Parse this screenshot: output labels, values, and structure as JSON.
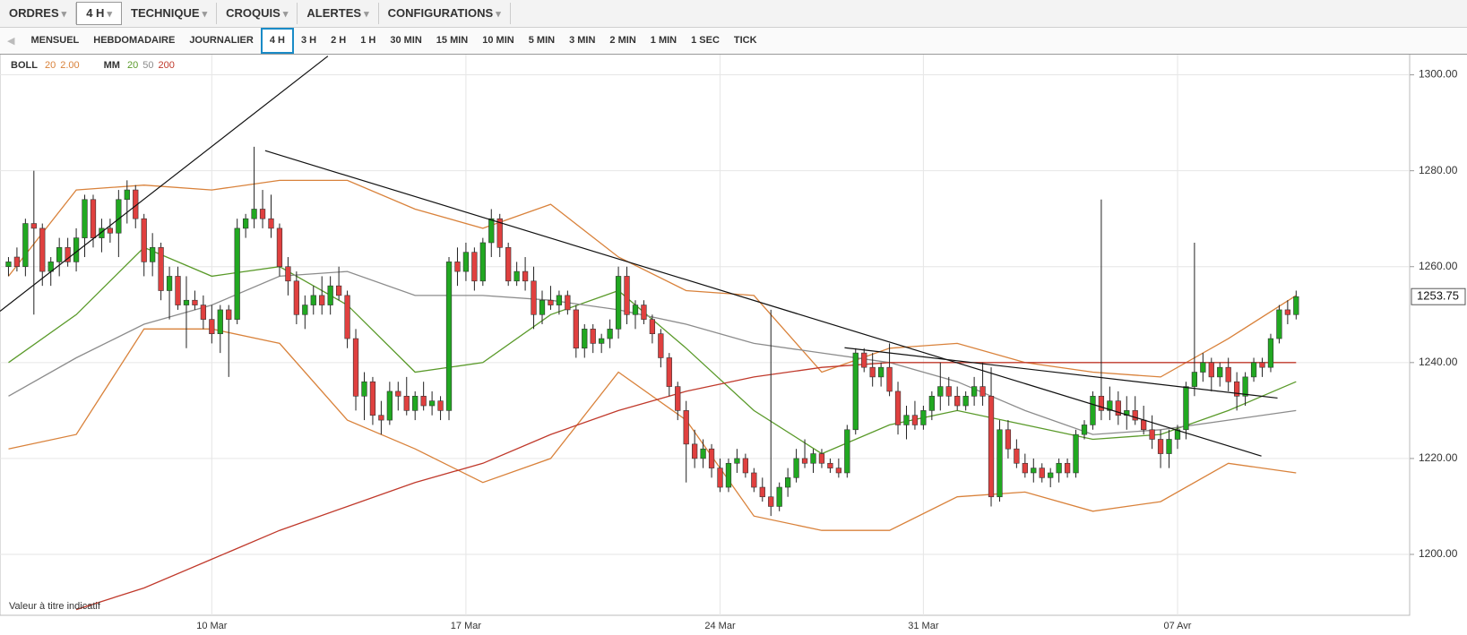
{
  "toolbar": {
    "menus": [
      "ORDRES",
      "4 H",
      "TECHNIQUE",
      "CROQUIS",
      "ALERTES",
      "CONFIGURATIONS"
    ],
    "selected": 1
  },
  "timeframes": {
    "items": [
      "MENSUEL",
      "HEBDOMADAIRE",
      "JOURNALIER",
      "4 H",
      "3 H",
      "2 H",
      "1 H",
      "30 MIN",
      "15 MIN",
      "10 MIN",
      "5 MIN",
      "3 MIN",
      "2 MIN",
      "1 MIN",
      "1 SEC",
      "TICK"
    ],
    "selected": 3
  },
  "chart_data": {
    "type": "candlestick",
    "indicators": [
      {
        "label": "BOLL",
        "params": [
          {
            "text": "20",
            "color": "#d9823b"
          },
          {
            "text": "2.00",
            "color": "#d9823b"
          }
        ]
      },
      {
        "label": "MM",
        "params": [
          {
            "text": "20",
            "color": "#5a9a2a"
          },
          {
            "text": "50",
            "color": "#8c8c8c"
          },
          {
            "text": "200",
            "color": "#c0392b"
          }
        ]
      }
    ],
    "up_color": "#21a821",
    "down_color": "#e0403f",
    "xlim": [
      -1,
      165.4
    ],
    "xticks": [
      {
        "value": 24,
        "label": "10 Mar"
      },
      {
        "value": 54,
        "label": "17 Mar"
      },
      {
        "value": 84,
        "label": "24 Mar"
      },
      {
        "value": 108,
        "label": "31 Mar"
      },
      {
        "value": 138,
        "label": "07 Avr"
      }
    ],
    "ylim": [
      1187.3,
      1304.4
    ],
    "yticks": [
      {
        "value": 1200,
        "label": "1200.00"
      },
      {
        "value": 1220,
        "label": "1220.00"
      },
      {
        "value": 1240,
        "label": "1240.00"
      },
      {
        "value": 1260,
        "label": "1260.00"
      },
      {
        "value": 1280,
        "label": "1280.00"
      },
      {
        "value": 1300,
        "label": "1300.00"
      }
    ],
    "grid": true,
    "last_price": 1253.75,
    "candles": [
      [
        1260,
        1262,
        1258,
        1261
      ],
      [
        1262,
        1264,
        1259,
        1260
      ],
      [
        1260,
        1270,
        1258,
        1269
      ],
      [
        1269,
        1280,
        1250,
        1268
      ],
      [
        1268,
        1269,
        1256,
        1259
      ],
      [
        1259,
        1262,
        1256,
        1261
      ],
      [
        1261,
        1266,
        1258,
        1264
      ],
      [
        1264,
        1266,
        1260,
        1261
      ],
      [
        1261,
        1268,
        1259,
        1266
      ],
      [
        1266,
        1275,
        1262,
        1274
      ],
      [
        1274,
        1275,
        1264,
        1266
      ],
      [
        1266,
        1270,
        1263,
        1268
      ],
      [
        1268,
        1270,
        1265,
        1267
      ],
      [
        1267,
        1276,
        1262,
        1274
      ],
      [
        1274,
        1278,
        1269,
        1276
      ],
      [
        1276,
        1277,
        1268,
        1270
      ],
      [
        1270,
        1271,
        1258,
        1261
      ],
      [
        1261,
        1267,
        1258,
        1264
      ],
      [
        1264,
        1265,
        1253,
        1255
      ],
      [
        1255,
        1260,
        1249,
        1258
      ],
      [
        1258,
        1260,
        1251,
        1252
      ],
      [
        1252,
        1258,
        1243,
        1253
      ],
      [
        1253,
        1255,
        1251,
        1252
      ],
      [
        1252,
        1254,
        1247,
        1249
      ],
      [
        1249,
        1252,
        1244,
        1246
      ],
      [
        1246,
        1252,
        1242,
        1251
      ],
      [
        1251,
        1252,
        1237,
        1249
      ],
      [
        1249,
        1270,
        1248,
        1268
      ],
      [
        1268,
        1271,
        1266,
        1270
      ],
      [
        1270,
        1285,
        1268,
        1272
      ],
      [
        1272,
        1276,
        1268,
        1270
      ],
      [
        1270,
        1275,
        1266,
        1268
      ],
      [
        1268,
        1269,
        1258,
        1260
      ],
      [
        1260,
        1262,
        1254,
        1257
      ],
      [
        1257,
        1259,
        1248,
        1250
      ],
      [
        1250,
        1254,
        1247,
        1252
      ],
      [
        1252,
        1256,
        1250,
        1254
      ],
      [
        1254,
        1258,
        1250,
        1252
      ],
      [
        1252,
        1258,
        1250,
        1256
      ],
      [
        1256,
        1260,
        1253,
        1254
      ],
      [
        1254,
        1255,
        1243,
        1245
      ],
      [
        1245,
        1247,
        1230,
        1233
      ],
      [
        1233,
        1238,
        1228,
        1236
      ],
      [
        1236,
        1237,
        1227,
        1229
      ],
      [
        1229,
        1232,
        1225,
        1228
      ],
      [
        1228,
        1236,
        1227,
        1234
      ],
      [
        1234,
        1236,
        1230,
        1233
      ],
      [
        1233,
        1237,
        1229,
        1230
      ],
      [
        1230,
        1234,
        1228,
        1233
      ],
      [
        1233,
        1236,
        1230,
        1231
      ],
      [
        1231,
        1234,
        1229,
        1232
      ],
      [
        1232,
        1233,
        1228,
        1230
      ],
      [
        1230,
        1262,
        1228,
        1261
      ],
      [
        1261,
        1264,
        1256,
        1259
      ],
      [
        1259,
        1265,
        1257,
        1263
      ],
      [
        1263,
        1264,
        1255,
        1257
      ],
      [
        1257,
        1266,
        1256,
        1265
      ],
      [
        1265,
        1272,
        1262,
        1270
      ],
      [
        1270,
        1271,
        1262,
        1264
      ],
      [
        1264,
        1265,
        1256,
        1257
      ],
      [
        1257,
        1261,
        1256,
        1259
      ],
      [
        1259,
        1262,
        1255,
        1257
      ],
      [
        1257,
        1260,
        1247,
        1250
      ],
      [
        1250,
        1255,
        1248,
        1253
      ],
      [
        1253,
        1256,
        1251,
        1252
      ],
      [
        1252,
        1255,
        1250,
        1254
      ],
      [
        1254,
        1255,
        1250,
        1251
      ],
      [
        1251,
        1252,
        1241,
        1243
      ],
      [
        1243,
        1248,
        1241,
        1247
      ],
      [
        1247,
        1248,
        1242,
        1244
      ],
      [
        1244,
        1246,
        1242,
        1245
      ],
      [
        1245,
        1249,
        1243,
        1247
      ],
      [
        1247,
        1260,
        1245,
        1258
      ],
      [
        1258,
        1260,
        1248,
        1250
      ],
      [
        1250,
        1253,
        1247,
        1252
      ],
      [
        1252,
        1253,
        1248,
        1249
      ],
      [
        1249,
        1250,
        1244,
        1246
      ],
      [
        1246,
        1247,
        1239,
        1241
      ],
      [
        1241,
        1242,
        1233,
        1235
      ],
      [
        1235,
        1236,
        1228,
        1230
      ],
      [
        1230,
        1232,
        1215,
        1223
      ],
      [
        1223,
        1226,
        1218,
        1220
      ],
      [
        1220,
        1224,
        1218,
        1222
      ],
      [
        1222,
        1223,
        1216,
        1218
      ],
      [
        1218,
        1220,
        1213,
        1214
      ],
      [
        1214,
        1220,
        1213,
        1219
      ],
      [
        1219,
        1222,
        1217,
        1220
      ],
      [
        1220,
        1221,
        1216,
        1217
      ],
      [
        1217,
        1218,
        1213,
        1214
      ],
      [
        1214,
        1216,
        1211,
        1212
      ],
      [
        1212,
        1251,
        1208,
        1210
      ],
      [
        1210,
        1215,
        1209,
        1214
      ],
      [
        1214,
        1218,
        1212,
        1216
      ],
      [
        1216,
        1222,
        1215,
        1220
      ],
      [
        1220,
        1224,
        1218,
        1219
      ],
      [
        1219,
        1222,
        1217,
        1221
      ],
      [
        1221,
        1222,
        1218,
        1219
      ],
      [
        1219,
        1220,
        1217,
        1218
      ],
      [
        1218,
        1220,
        1216,
        1217
      ],
      [
        1217,
        1227,
        1216,
        1226
      ],
      [
        1226,
        1243,
        1225,
        1242
      ],
      [
        1242,
        1243,
        1238,
        1239
      ],
      [
        1239,
        1242,
        1235,
        1237
      ],
      [
        1237,
        1240,
        1235,
        1239
      ],
      [
        1239,
        1244,
        1233,
        1234
      ],
      [
        1234,
        1236,
        1225,
        1227
      ],
      [
        1227,
        1231,
        1224,
        1229
      ],
      [
        1229,
        1232,
        1226,
        1227
      ],
      [
        1227,
        1231,
        1226,
        1230
      ],
      [
        1230,
        1234,
        1228,
        1233
      ],
      [
        1233,
        1240,
        1230,
        1235
      ],
      [
        1235,
        1237,
        1231,
        1233
      ],
      [
        1233,
        1235,
        1230,
        1231
      ],
      [
        1231,
        1234,
        1230,
        1233
      ],
      [
        1233,
        1237,
        1231,
        1235
      ],
      [
        1235,
        1240,
        1231,
        1233
      ],
      [
        1233,
        1239,
        1210,
        1212
      ],
      [
        1212,
        1228,
        1211,
        1226
      ],
      [
        1226,
        1228,
        1220,
        1222
      ],
      [
        1222,
        1224,
        1218,
        1219
      ],
      [
        1219,
        1221,
        1216,
        1217
      ],
      [
        1217,
        1220,
        1215,
        1218
      ],
      [
        1218,
        1219,
        1215,
        1216
      ],
      [
        1216,
        1218,
        1214,
        1217
      ],
      [
        1217,
        1220,
        1215,
        1219
      ],
      [
        1219,
        1220,
        1216,
        1217
      ],
      [
        1217,
        1226,
        1216,
        1225
      ],
      [
        1225,
        1228,
        1224,
        1227
      ],
      [
        1227,
        1234,
        1226,
        1233
      ],
      [
        1233,
        1274,
        1228,
        1230
      ],
      [
        1230,
        1235,
        1228,
        1232
      ],
      [
        1232,
        1234,
        1227,
        1229
      ],
      [
        1229,
        1233,
        1226,
        1230
      ],
      [
        1230,
        1233,
        1227,
        1228
      ],
      [
        1228,
        1231,
        1225,
        1226
      ],
      [
        1226,
        1229,
        1222,
        1224
      ],
      [
        1224,
        1226,
        1218,
        1221
      ],
      [
        1221,
        1226,
        1218,
        1224
      ],
      [
        1224,
        1227,
        1222,
        1226
      ],
      [
        1226,
        1236,
        1224,
        1235
      ],
      [
        1235,
        1265,
        1233,
        1238
      ],
      [
        1238,
        1242,
        1236,
        1240
      ],
      [
        1240,
        1241,
        1234,
        1237
      ],
      [
        1237,
        1240,
        1235,
        1239
      ],
      [
        1239,
        1241,
        1234,
        1236
      ],
      [
        1236,
        1238,
        1230,
        1233
      ],
      [
        1233,
        1238,
        1231,
        1237
      ],
      [
        1237,
        1241,
        1236,
        1240
      ],
      [
        1240,
        1241,
        1237,
        1239
      ],
      [
        1239,
        1246,
        1238,
        1245
      ],
      [
        1245,
        1252,
        1244,
        1251
      ],
      [
        1251,
        1253,
        1248,
        1250
      ],
      [
        1250,
        1255,
        1249,
        1253.75
      ]
    ],
    "x": [
      0,
      8,
      16,
      24,
      32,
      40,
      48,
      56,
      64,
      72,
      80,
      88,
      96,
      104,
      112,
      120,
      128,
      136,
      144,
      152
    ],
    "series": [
      {
        "color": "#d9823b",
        "values": [
          1258,
          1276,
          1277,
          1276,
          1278,
          1278,
          1272,
          1268,
          1273,
          1262,
          1255,
          1254,
          1238,
          1243,
          1244,
          1240,
          1238,
          1237,
          1245,
          1254
        ]
      },
      {
        "color": "#d9823b",
        "values": [
          1222,
          1225,
          1247,
          1247,
          1244,
          1228,
          1222,
          1215,
          1220,
          1238,
          1228,
          1208,
          1205,
          1205,
          1212,
          1213,
          1209,
          1211,
          1219,
          1217
        ]
      },
      {
        "color": "#5a9a2a",
        "values": [
          1240,
          1250,
          1264,
          1258,
          1260,
          1252,
          1238,
          1240,
          1250,
          1255,
          1243,
          1230,
          1221,
          1227,
          1230,
          1227,
          1224,
          1225,
          1230,
          1236
        ]
      },
      {
        "color": "#8c8c8c",
        "values": [
          1233,
          1241,
          1248,
          1252,
          1258,
          1259,
          1254,
          1254,
          1253,
          1251,
          1248,
          1244,
          1242,
          1240,
          1236,
          1230,
          1225,
          1226,
          1228,
          1230
        ]
      },
      {
        "color": "#c0392b",
        "values": [
          null,
          1188.5,
          1193,
          1199,
          1205,
          1210,
          1215,
          1219,
          1225,
          1230,
          1234,
          1237,
          1239,
          1240,
          1240,
          1240,
          1240,
          1240,
          1240,
          1240
        ]
      }
    ],
    "trendlines": [
      {
        "x": [
          -1,
          37.7
        ],
        "y": [
          1250.7,
          1303.9
        ]
      },
      {
        "x": [
          30.3,
          147.9
        ],
        "y": [
          1284.2,
          1220.5
        ]
      },
      {
        "x": [
          98.7,
          149.8
        ],
        "y": [
          1243.1,
          1232.6
        ]
      }
    ],
    "note": "Valeur à titre indicatif"
  }
}
